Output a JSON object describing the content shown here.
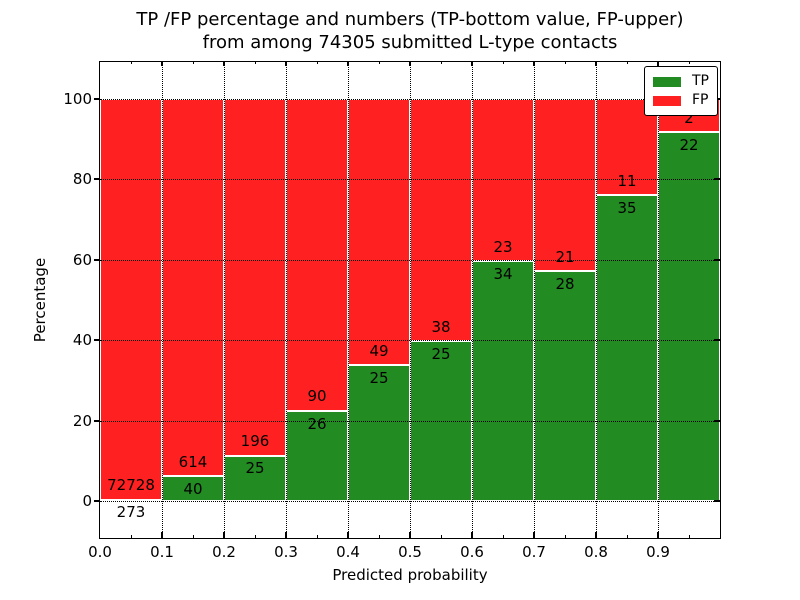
{
  "chart_data": {
    "type": "bar",
    "stacked": true,
    "normalized_to_100_percent": true,
    "title_line1": "TP /FP percentage and numbers (TP-bottom value, FP-upper)",
    "title_line2": "from among 74305 submitted L-type contacts",
    "xlabel": "Predicted probability",
    "ylabel": "Percentage",
    "total_contacts": 74305,
    "xlim": [
      0.0,
      1.0
    ],
    "ylim": [
      -9.2,
      109.2
    ],
    "xticks": [
      "0.0",
      "0.1",
      "0.2",
      "0.3",
      "0.4",
      "0.5",
      "0.6",
      "0.7",
      "0.8",
      "0.9"
    ],
    "xtick_values": [
      0.0,
      0.1,
      0.2,
      0.3,
      0.4,
      0.5,
      0.6,
      0.7,
      0.8,
      0.9
    ],
    "yticks": [
      0,
      20,
      40,
      60,
      80,
      100
    ],
    "bin_edges": [
      0.0,
      0.1,
      0.2,
      0.3,
      0.4,
      0.5,
      0.6,
      0.7,
      0.8,
      0.9,
      1.0
    ],
    "grid_style": "dotted",
    "legend_position": "upper right",
    "series": [
      {
        "name": "TP",
        "color": "#228B22",
        "position": "bottom",
        "values": [
          273,
          40,
          25,
          26,
          25,
          25,
          34,
          28,
          35,
          22
        ]
      },
      {
        "name": "FP",
        "color": "#FF2121",
        "position": "top",
        "values": [
          72728,
          614,
          196,
          90,
          49,
          38,
          23,
          21,
          11,
          2
        ]
      }
    ]
  }
}
